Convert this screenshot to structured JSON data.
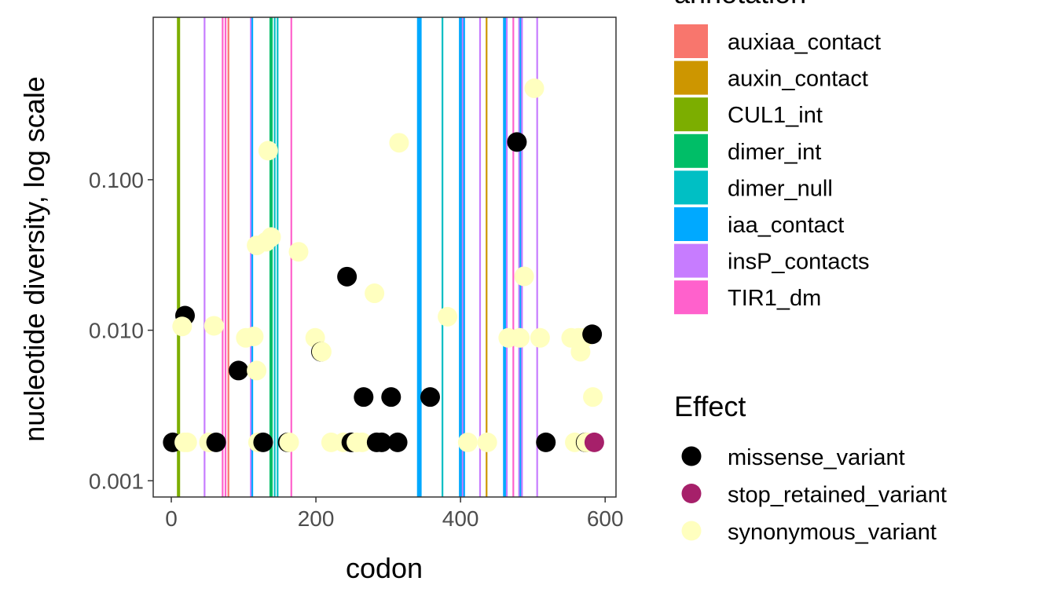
{
  "chart_data": {
    "type": "scatter",
    "xlabel": "codon",
    "ylabel": "nucleotide diversity, log scale",
    "xlim": [
      -25,
      615
    ],
    "ylim": [
      0.00078,
      1.2
    ],
    "y_scale": "log10",
    "x_ticks": [
      {
        "value": 0,
        "label": "0"
      },
      {
        "value": 200,
        "label": "200"
      },
      {
        "value": 400,
        "label": "400"
      },
      {
        "value": 600,
        "label": "600"
      }
    ],
    "y_ticks": [
      {
        "value": 0.001,
        "label": "0.001"
      },
      {
        "value": 0.01,
        "label": "0.010"
      },
      {
        "value": 0.1,
        "label": "0.100"
      }
    ],
    "grid": false,
    "annotation_legend": {
      "title": "annotation",
      "items": [
        {
          "name": "auxiaa_contact",
          "color": "#F8766D"
        },
        {
          "name": "auxin_contact",
          "color": "#CD9600"
        },
        {
          "name": "CUL1_int",
          "color": "#7CAE00"
        },
        {
          "name": "dimer_int",
          "color": "#00BE67"
        },
        {
          "name": "dimer_null",
          "color": "#00BFC4"
        },
        {
          "name": "iaa_contact",
          "color": "#00A9FF"
        },
        {
          "name": "insP_contacts",
          "color": "#C77CFF"
        },
        {
          "name": "TIR1_dm",
          "color": "#FF61CC"
        }
      ]
    },
    "effect_legend": {
      "title": "Effect",
      "items": [
        {
          "name": "missense_variant",
          "color": "#000000"
        },
        {
          "name": "stop_retained_variant",
          "color": "#A6206A"
        },
        {
          "name": "synonymous_variant",
          "color": "#FFFFBF"
        }
      ]
    },
    "annotation_lines": [
      {
        "x": 9,
        "type": "CUL1_int"
      },
      {
        "x": 10,
        "type": "CUL1_int"
      },
      {
        "x": 11,
        "type": "CUL1_int"
      },
      {
        "x": 46,
        "type": "insP_contacts"
      },
      {
        "x": 71,
        "type": "TIR1_dm"
      },
      {
        "x": 75,
        "type": "TIR1_dm"
      },
      {
        "x": 79,
        "type": "auxiaa_contact"
      },
      {
        "x": 110,
        "type": "insP_contacts"
      },
      {
        "x": 112,
        "type": "iaa_contact"
      },
      {
        "x": 137,
        "type": "dimer_int"
      },
      {
        "x": 139,
        "type": "dimer_int"
      },
      {
        "x": 143,
        "type": "dimer_null"
      },
      {
        "x": 147,
        "type": "dimer_null"
      },
      {
        "x": 166,
        "type": "TIR1_dm"
      },
      {
        "x": 341,
        "type": "iaa_contact"
      },
      {
        "x": 343,
        "type": "iaa_contact"
      },
      {
        "x": 345,
        "type": "iaa_contact"
      },
      {
        "x": 375,
        "type": "dimer_null"
      },
      {
        "x": 399,
        "type": "iaa_contact"
      },
      {
        "x": 401,
        "type": "iaa_contact"
      },
      {
        "x": 403,
        "type": "insP_contacts"
      },
      {
        "x": 405,
        "type": "iaa_contact"
      },
      {
        "x": 427,
        "type": "insP_contacts"
      },
      {
        "x": 436,
        "type": "auxin_contact"
      },
      {
        "x": 460,
        "type": "iaa_contact"
      },
      {
        "x": 462,
        "type": "iaa_contact"
      },
      {
        "x": 464,
        "type": "insP_contacts"
      },
      {
        "x": 473,
        "type": "TIR1_dm"
      },
      {
        "x": 481,
        "type": "insP_contacts"
      },
      {
        "x": 483,
        "type": "iaa_contact"
      },
      {
        "x": 485,
        "type": "insP_contacts"
      },
      {
        "x": 506,
        "type": "insP_contacts"
      }
    ],
    "points": [
      {
        "x": 2,
        "y": 0.0018,
        "effect": "missense_variant"
      },
      {
        "x": 19,
        "y": 0.0125,
        "effect": "missense_variant"
      },
      {
        "x": 15,
        "y": 0.0106,
        "effect": "synonymous_variant"
      },
      {
        "x": 18,
        "y": 0.0018,
        "effect": "synonymous_variant"
      },
      {
        "x": 22,
        "y": 0.0018,
        "effect": "synonymous_variant"
      },
      {
        "x": 52,
        "y": 0.0018,
        "effect": "synonymous_variant"
      },
      {
        "x": 59,
        "y": 0.0107,
        "effect": "synonymous_variant"
      },
      {
        "x": 62,
        "y": 0.0018,
        "effect": "missense_variant"
      },
      {
        "x": 93,
        "y": 0.0054,
        "effect": "missense_variant"
      },
      {
        "x": 103,
        "y": 0.0089,
        "effect": "synonymous_variant"
      },
      {
        "x": 114,
        "y": 0.0091,
        "effect": "synonymous_variant"
      },
      {
        "x": 118,
        "y": 0.0054,
        "effect": "synonymous_variant"
      },
      {
        "x": 118,
        "y": 0.0366,
        "effect": "synonymous_variant"
      },
      {
        "x": 120,
        "y": 0.0018,
        "effect": "synonymous_variant"
      },
      {
        "x": 127,
        "y": 0.0018,
        "effect": "missense_variant"
      },
      {
        "x": 131,
        "y": 0.0387,
        "effect": "synonymous_variant"
      },
      {
        "x": 134,
        "y": 0.156,
        "effect": "synonymous_variant"
      },
      {
        "x": 138,
        "y": 0.0416,
        "effect": "synonymous_variant"
      },
      {
        "x": 161,
        "y": 0.0018,
        "effect": "missense_variant"
      },
      {
        "x": 163,
        "y": 0.0018,
        "effect": "synonymous_variant"
      },
      {
        "x": 176,
        "y": 0.0332,
        "effect": "synonymous_variant"
      },
      {
        "x": 199,
        "y": 0.0089,
        "effect": "synonymous_variant"
      },
      {
        "x": 207,
        "y": 0.0072,
        "effect": "missense_variant"
      },
      {
        "x": 208,
        "y": 0.0072,
        "effect": "synonymous_variant"
      },
      {
        "x": 221,
        "y": 0.0018,
        "effect": "synonymous_variant"
      },
      {
        "x": 238,
        "y": 0.0018,
        "effect": "synonymous_variant"
      },
      {
        "x": 243,
        "y": 0.0227,
        "effect": "missense_variant"
      },
      {
        "x": 249,
        "y": 0.0018,
        "effect": "missense_variant"
      },
      {
        "x": 256,
        "y": 0.0018,
        "effect": "synonymous_variant"
      },
      {
        "x": 264,
        "y": 0.0018,
        "effect": "synonymous_variant"
      },
      {
        "x": 266,
        "y": 0.0036,
        "effect": "missense_variant"
      },
      {
        "x": 281,
        "y": 0.0176,
        "effect": "synonymous_variant"
      },
      {
        "x": 284,
        "y": 0.0018,
        "effect": "missense_variant"
      },
      {
        "x": 291,
        "y": 0.0018,
        "effect": "missense_variant"
      },
      {
        "x": 304,
        "y": 0.0036,
        "effect": "missense_variant"
      },
      {
        "x": 313,
        "y": 0.0018,
        "effect": "missense_variant"
      },
      {
        "x": 315,
        "y": 0.176,
        "effect": "synonymous_variant"
      },
      {
        "x": 358,
        "y": 0.0036,
        "effect": "missense_variant"
      },
      {
        "x": 382,
        "y": 0.0123,
        "effect": "synonymous_variant"
      },
      {
        "x": 410,
        "y": 0.0018,
        "effect": "synonymous_variant"
      },
      {
        "x": 437,
        "y": 0.0018,
        "effect": "synonymous_variant"
      },
      {
        "x": 466,
        "y": 0.0089,
        "effect": "synonymous_variant"
      },
      {
        "x": 478,
        "y": 0.178,
        "effect": "missense_variant"
      },
      {
        "x": 482,
        "y": 0.0089,
        "effect": "synonymous_variant"
      },
      {
        "x": 488,
        "y": 0.0228,
        "effect": "synonymous_variant"
      },
      {
        "x": 502,
        "y": 0.405,
        "effect": "synonymous_variant"
      },
      {
        "x": 510,
        "y": 0.0089,
        "effect": "synonymous_variant"
      },
      {
        "x": 518,
        "y": 0.0018,
        "effect": "missense_variant"
      },
      {
        "x": 553,
        "y": 0.0089,
        "effect": "synonymous_variant"
      },
      {
        "x": 558,
        "y": 0.0018,
        "effect": "synonymous_variant"
      },
      {
        "x": 563,
        "y": 0.0089,
        "effect": "synonymous_variant"
      },
      {
        "x": 566,
        "y": 0.0072,
        "effect": "synonymous_variant"
      },
      {
        "x": 571,
        "y": 0.0089,
        "effect": "synonymous_variant"
      },
      {
        "x": 573,
        "y": 0.0018,
        "effect": "missense_variant"
      },
      {
        "x": 574,
        "y": 0.0018,
        "effect": "synonymous_variant"
      },
      {
        "x": 582,
        "y": 0.0094,
        "effect": "missense_variant"
      },
      {
        "x": 583,
        "y": 0.0036,
        "effect": "synonymous_variant"
      },
      {
        "x": 585,
        "y": 0.0018,
        "effect": "stop_retained_variant"
      }
    ]
  }
}
